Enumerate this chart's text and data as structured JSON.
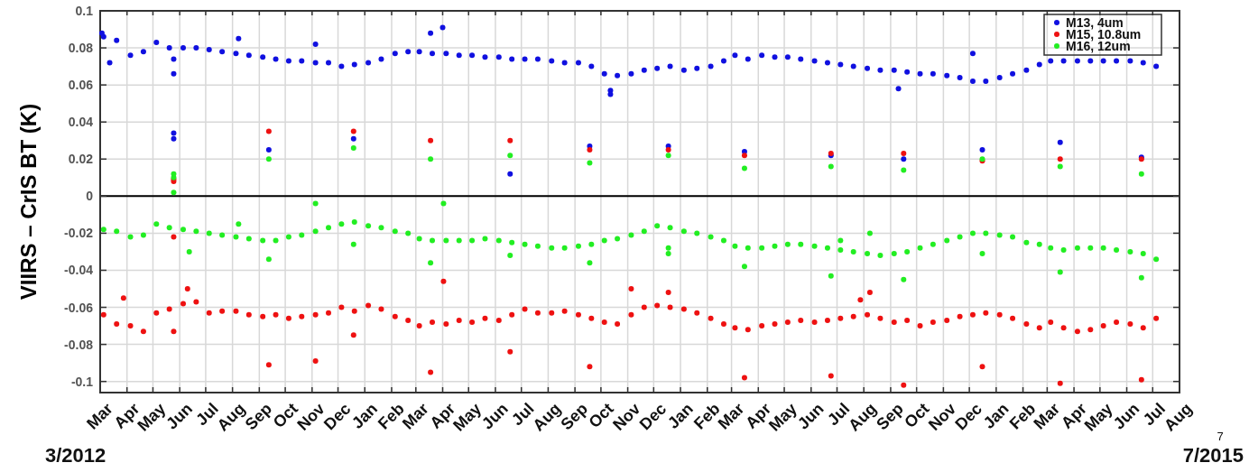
{
  "chart_data": {
    "type": "scatter",
    "ylabel": "VIIRS – CrIS BT (K)",
    "annotations": [
      "3/2012",
      "7/2015",
      "7"
    ],
    "xlim": [
      "2012-03-01",
      "2015-08-01"
    ],
    "ylim": [
      -0.106,
      0.1
    ],
    "yticks": [
      -0.1,
      -0.08,
      -0.06,
      -0.04,
      -0.02,
      0,
      0.02,
      0.04,
      0.06,
      0.08,
      0.1
    ],
    "xticks": [
      {
        "value": "2012-03-01",
        "label": "Mar"
      },
      {
        "value": "2012-04-01",
        "label": "Apr"
      },
      {
        "value": "2012-05-01",
        "label": "May"
      },
      {
        "value": "2012-06-01",
        "label": "Jun"
      },
      {
        "value": "2012-07-01",
        "label": "Jul"
      },
      {
        "value": "2012-08-01",
        "label": "Aug"
      },
      {
        "value": "2012-09-01",
        "label": "Sep"
      },
      {
        "value": "2012-10-01",
        "label": "Oct"
      },
      {
        "value": "2012-11-01",
        "label": "Nov"
      },
      {
        "value": "2012-12-01",
        "label": "Dec"
      },
      {
        "value": "2013-01-01",
        "label": "Jan"
      },
      {
        "value": "2013-02-01",
        "label": "Feb"
      },
      {
        "value": "2013-03-01",
        "label": "Mar"
      },
      {
        "value": "2013-04-01",
        "label": "Apr"
      },
      {
        "value": "2013-05-01",
        "label": "May"
      },
      {
        "value": "2013-06-01",
        "label": "Jun"
      },
      {
        "value": "2013-07-01",
        "label": "Jul"
      },
      {
        "value": "2013-08-01",
        "label": "Aug"
      },
      {
        "value": "2013-09-01",
        "label": "Sep"
      },
      {
        "value": "2013-10-01",
        "label": "Oct"
      },
      {
        "value": "2013-11-01",
        "label": "Nov"
      },
      {
        "value": "2013-12-01",
        "label": "Dec"
      },
      {
        "value": "2014-01-01",
        "label": "Jan"
      },
      {
        "value": "2014-02-01",
        "label": "Feb"
      },
      {
        "value": "2014-03-01",
        "label": "Mar"
      },
      {
        "value": "2014-04-01",
        "label": "Apr"
      },
      {
        "value": "2014-05-01",
        "label": "May"
      },
      {
        "value": "2014-06-01",
        "label": "Jun"
      },
      {
        "value": "2014-07-01",
        "label": "Jul"
      },
      {
        "value": "2014-08-01",
        "label": "Aug"
      },
      {
        "value": "2014-09-01",
        "label": "Sep"
      },
      {
        "value": "2014-10-01",
        "label": "Oct"
      },
      {
        "value": "2014-11-01",
        "label": "Nov"
      },
      {
        "value": "2014-12-01",
        "label": "Dec"
      },
      {
        "value": "2015-01-01",
        "label": "Jan"
      },
      {
        "value": "2015-02-01",
        "label": "Feb"
      },
      {
        "value": "2015-03-01",
        "label": "Mar"
      },
      {
        "value": "2015-04-01",
        "label": "Apr"
      },
      {
        "value": "2015-05-01",
        "label": "May"
      },
      {
        "value": "2015-06-01",
        "label": "Jun"
      },
      {
        "value": "2015-07-01",
        "label": "Jul"
      },
      {
        "value": "2015-08-01",
        "label": "Aug"
      }
    ],
    "grid": true,
    "legend": "top right",
    "marker": "circle",
    "ref_lines": [
      {
        "axis": "y",
        "value": 0,
        "color": "#000000"
      }
    ],
    "series": [
      {
        "name": "M13, 4um",
        "color": "#1010e0",
        "x": [
          "2012-03-05",
          "2012-03-20",
          "2012-04-05",
          "2012-04-20",
          "2012-05-05",
          "2012-05-20",
          "2012-06-05",
          "2012-06-20",
          "2012-07-05",
          "2012-07-20",
          "2012-08-05",
          "2012-08-20",
          "2012-09-05",
          "2012-09-20",
          "2012-10-05",
          "2012-10-20",
          "2012-11-05",
          "2012-11-20",
          "2012-12-05",
          "2012-12-20",
          "2013-01-05",
          "2013-01-20",
          "2013-02-05",
          "2013-02-20",
          "2013-03-05",
          "2013-03-20",
          "2013-04-05",
          "2013-04-20",
          "2013-05-05",
          "2013-05-20",
          "2013-06-05",
          "2013-06-20",
          "2013-07-05",
          "2013-07-20",
          "2013-08-05",
          "2013-08-20",
          "2013-09-05",
          "2013-09-20",
          "2013-10-05",
          "2013-10-20",
          "2013-11-05",
          "2013-11-20",
          "2013-12-05",
          "2013-12-20",
          "2014-01-05",
          "2014-01-20",
          "2014-02-05",
          "2014-02-20",
          "2014-03-05",
          "2014-03-20",
          "2014-04-05",
          "2014-04-20",
          "2014-05-05",
          "2014-05-20",
          "2014-06-05",
          "2014-06-20",
          "2014-07-05",
          "2014-07-20",
          "2014-08-05",
          "2014-08-20",
          "2014-09-05",
          "2014-09-20",
          "2014-10-05",
          "2014-10-20",
          "2014-11-05",
          "2014-11-20",
          "2014-12-05",
          "2014-12-20",
          "2015-01-05",
          "2015-01-20",
          "2015-02-05",
          "2015-02-20",
          "2015-03-05",
          "2015-03-20",
          "2015-04-05",
          "2015-04-20",
          "2015-05-05",
          "2015-05-20",
          "2015-06-05",
          "2015-06-20",
          "2015-07-05",
          "2012-03-03",
          "2012-03-12",
          "2012-05-25",
          "2012-05-25",
          "2012-05-25",
          "2012-05-25",
          "2012-08-08",
          "2012-09-12",
          "2012-11-05",
          "2012-12-19",
          "2013-03-18",
          "2013-04-01",
          "2013-06-18",
          "2013-09-18",
          "2013-10-12",
          "2013-10-12",
          "2013-12-18",
          "2014-03-16",
          "2014-06-24",
          "2014-09-16",
          "2014-09-10",
          "2014-12-16",
          "2014-12-05",
          "2015-03-16",
          "2015-06-18"
        ],
        "values": [
          0.086,
          0.084,
          0.076,
          0.078,
          0.083,
          0.08,
          0.08,
          0.08,
          0.079,
          0.078,
          0.077,
          0.076,
          0.075,
          0.074,
          0.073,
          0.073,
          0.072,
          0.072,
          0.07,
          0.071,
          0.072,
          0.074,
          0.077,
          0.078,
          0.078,
          0.077,
          0.077,
          0.076,
          0.076,
          0.075,
          0.075,
          0.074,
          0.074,
          0.074,
          0.073,
          0.072,
          0.072,
          0.07,
          0.066,
          0.065,
          0.066,
          0.068,
          0.069,
          0.07,
          0.068,
          0.069,
          0.07,
          0.073,
          0.076,
          0.074,
          0.076,
          0.075,
          0.075,
          0.074,
          0.073,
          0.072,
          0.071,
          0.07,
          0.069,
          0.068,
          0.068,
          0.067,
          0.066,
          0.066,
          0.065,
          0.064,
          0.062,
          0.062,
          0.064,
          0.066,
          0.068,
          0.071,
          0.073,
          0.073,
          0.073,
          0.073,
          0.073,
          0.073,
          0.073,
          0.072,
          0.07,
          0.088,
          0.072,
          0.034,
          0.031,
          0.066,
          0.074,
          0.085,
          0.025,
          0.082,
          0.031,
          0.088,
          0.091,
          0.012,
          0.027,
          0.057,
          0.055,
          0.027,
          0.024,
          0.022,
          0.02,
          0.058,
          0.025,
          0.077,
          0.029,
          0.021
        ]
      },
      {
        "name": "M15, 10.8um",
        "color": "#ee1111",
        "x": [
          "2012-03-05",
          "2012-03-20",
          "2012-04-05",
          "2012-04-20",
          "2012-05-05",
          "2012-05-20",
          "2012-06-05",
          "2012-06-20",
          "2012-07-05",
          "2012-07-20",
          "2012-08-05",
          "2012-08-20",
          "2012-09-05",
          "2012-09-20",
          "2012-10-05",
          "2012-10-20",
          "2012-11-05",
          "2012-11-20",
          "2012-12-05",
          "2012-12-20",
          "2013-01-05",
          "2013-01-20",
          "2013-02-05",
          "2013-02-20",
          "2013-03-05",
          "2013-03-20",
          "2013-04-05",
          "2013-04-20",
          "2013-05-05",
          "2013-05-20",
          "2013-06-05",
          "2013-06-20",
          "2013-07-05",
          "2013-07-20",
          "2013-08-05",
          "2013-08-20",
          "2013-09-05",
          "2013-09-20",
          "2013-10-05",
          "2013-10-20",
          "2013-11-05",
          "2013-11-20",
          "2013-12-05",
          "2013-12-20",
          "2014-01-05",
          "2014-01-20",
          "2014-02-05",
          "2014-02-20",
          "2014-03-05",
          "2014-03-20",
          "2014-04-05",
          "2014-04-20",
          "2014-05-05",
          "2014-05-20",
          "2014-06-05",
          "2014-06-20",
          "2014-07-05",
          "2014-07-20",
          "2014-08-05",
          "2014-08-20",
          "2014-09-05",
          "2014-09-20",
          "2014-10-05",
          "2014-10-20",
          "2014-11-05",
          "2014-11-20",
          "2014-12-05",
          "2014-12-20",
          "2015-01-05",
          "2015-01-20",
          "2015-02-05",
          "2015-02-20",
          "2015-03-05",
          "2015-03-20",
          "2015-04-05",
          "2015-04-20",
          "2015-05-05",
          "2015-05-20",
          "2015-06-05",
          "2015-06-20",
          "2015-07-05",
          "2012-03-28",
          "2012-05-25",
          "2012-05-25",
          "2012-05-25",
          "2012-05-25",
          "2012-06-10",
          "2012-09-12",
          "2012-09-12",
          "2012-11-05",
          "2012-12-19",
          "2012-12-19",
          "2013-03-18",
          "2013-03-18",
          "2013-04-02",
          "2013-06-18",
          "2013-06-18",
          "2013-09-18",
          "2013-09-18",
          "2013-11-05",
          "2013-12-18",
          "2013-12-18",
          "2014-03-16",
          "2014-03-16",
          "2014-06-24",
          "2014-06-24",
          "2014-07-28",
          "2014-08-08",
          "2014-09-16",
          "2014-09-16",
          "2014-12-16",
          "2014-12-16",
          "2015-03-16",
          "2015-03-16",
          "2015-06-18",
          "2015-06-18"
        ],
        "values": [
          -0.064,
          -0.069,
          -0.07,
          -0.073,
          -0.063,
          -0.061,
          -0.058,
          -0.057,
          -0.063,
          -0.062,
          -0.062,
          -0.064,
          -0.065,
          -0.064,
          -0.066,
          -0.065,
          -0.064,
          -0.063,
          -0.06,
          -0.062,
          -0.059,
          -0.061,
          -0.065,
          -0.067,
          -0.07,
          -0.068,
          -0.069,
          -0.067,
          -0.068,
          -0.066,
          -0.067,
          -0.064,
          -0.061,
          -0.063,
          -0.063,
          -0.062,
          -0.064,
          -0.066,
          -0.068,
          -0.069,
          -0.064,
          -0.06,
          -0.059,
          -0.06,
          -0.061,
          -0.063,
          -0.066,
          -0.069,
          -0.071,
          -0.072,
          -0.07,
          -0.069,
          -0.068,
          -0.067,
          -0.068,
          -0.067,
          -0.066,
          -0.065,
          -0.064,
          -0.066,
          -0.068,
          -0.067,
          -0.07,
          -0.068,
          -0.067,
          -0.065,
          -0.064,
          -0.063,
          -0.064,
          -0.066,
          -0.069,
          -0.071,
          -0.068,
          -0.071,
          -0.073,
          -0.072,
          -0.07,
          -0.068,
          -0.069,
          -0.071,
          -0.066,
          -0.055,
          0.008,
          0.009,
          -0.022,
          -0.073,
          -0.05,
          0.035,
          -0.091,
          -0.089,
          0.035,
          -0.075,
          0.03,
          -0.095,
          -0.046,
          0.03,
          -0.084,
          0.025,
          -0.092,
          -0.05,
          0.025,
          -0.052,
          0.022,
          -0.098,
          0.023,
          -0.097,
          -0.056,
          -0.052,
          0.023,
          -0.102,
          0.019,
          -0.092,
          0.02,
          -0.101,
          0.02,
          -0.099
        ]
      },
      {
        "name": "M16, 12um",
        "color": "#22ee22",
        "x": [
          "2012-03-05",
          "2012-03-20",
          "2012-04-05",
          "2012-04-20",
          "2012-05-05",
          "2012-05-20",
          "2012-06-05",
          "2012-06-20",
          "2012-07-05",
          "2012-07-20",
          "2012-08-05",
          "2012-08-20",
          "2012-09-05",
          "2012-09-20",
          "2012-10-05",
          "2012-10-20",
          "2012-11-05",
          "2012-11-20",
          "2012-12-05",
          "2012-12-20",
          "2013-01-05",
          "2013-01-20",
          "2013-02-05",
          "2013-02-20",
          "2013-03-05",
          "2013-03-20",
          "2013-04-05",
          "2013-04-20",
          "2013-05-05",
          "2013-05-20",
          "2013-06-05",
          "2013-06-20",
          "2013-07-05",
          "2013-07-20",
          "2013-08-05",
          "2013-08-20",
          "2013-09-05",
          "2013-09-20",
          "2013-10-05",
          "2013-10-20",
          "2013-11-05",
          "2013-11-20",
          "2013-12-05",
          "2013-12-20",
          "2014-01-05",
          "2014-01-20",
          "2014-02-05",
          "2014-02-20",
          "2014-03-05",
          "2014-03-20",
          "2014-04-05",
          "2014-04-20",
          "2014-05-05",
          "2014-05-20",
          "2014-06-05",
          "2014-06-20",
          "2014-07-05",
          "2014-07-20",
          "2014-08-05",
          "2014-08-20",
          "2014-09-05",
          "2014-09-20",
          "2014-10-05",
          "2014-10-20",
          "2014-11-05",
          "2014-11-20",
          "2014-12-05",
          "2014-12-20",
          "2015-01-05",
          "2015-01-20",
          "2015-02-05",
          "2015-02-20",
          "2015-03-05",
          "2015-03-20",
          "2015-04-05",
          "2015-04-20",
          "2015-05-05",
          "2015-05-20",
          "2015-06-05",
          "2015-06-20",
          "2015-07-05",
          "2012-05-25",
          "2012-05-25",
          "2012-05-25",
          "2012-06-12",
          "2012-08-08",
          "2012-09-12",
          "2012-09-12",
          "2012-11-05",
          "2012-12-19",
          "2012-12-19",
          "2013-03-18",
          "2013-03-18",
          "2013-04-02",
          "2013-06-18",
          "2013-06-18",
          "2013-09-18",
          "2013-09-18",
          "2013-12-18",
          "2013-12-18",
          "2013-12-18",
          "2014-03-16",
          "2014-03-16",
          "2014-06-24",
          "2014-06-24",
          "2014-07-05",
          "2014-08-08",
          "2014-09-16",
          "2014-09-16",
          "2014-12-16",
          "2014-12-16",
          "2015-03-16",
          "2015-03-16",
          "2015-06-18",
          "2015-06-18"
        ],
        "values": [
          -0.018,
          -0.019,
          -0.022,
          -0.021,
          -0.015,
          -0.017,
          -0.018,
          -0.019,
          -0.02,
          -0.021,
          -0.022,
          -0.023,
          -0.024,
          -0.024,
          -0.022,
          -0.021,
          -0.019,
          -0.017,
          -0.015,
          -0.014,
          -0.016,
          -0.017,
          -0.019,
          -0.02,
          -0.023,
          -0.024,
          -0.024,
          -0.024,
          -0.024,
          -0.023,
          -0.024,
          -0.025,
          -0.026,
          -0.027,
          -0.028,
          -0.028,
          -0.027,
          -0.026,
          -0.024,
          -0.023,
          -0.021,
          -0.019,
          -0.016,
          -0.017,
          -0.019,
          -0.02,
          -0.022,
          -0.024,
          -0.027,
          -0.028,
          -0.028,
          -0.027,
          -0.026,
          -0.026,
          -0.027,
          -0.028,
          -0.029,
          -0.03,
          -0.031,
          -0.032,
          -0.031,
          -0.03,
          -0.028,
          -0.026,
          -0.024,
          -0.022,
          -0.02,
          -0.02,
          -0.021,
          -0.022,
          -0.025,
          -0.026,
          -0.028,
          -0.029,
          -0.028,
          -0.028,
          -0.028,
          -0.029,
          -0.03,
          -0.031,
          -0.034,
          0.012,
          0.01,
          0.002,
          -0.03,
          -0.015,
          0.02,
          -0.034,
          -0.004,
          0.026,
          -0.026,
          0.02,
          -0.036,
          -0.004,
          0.022,
          -0.032,
          0.018,
          -0.036,
          0.022,
          -0.028,
          -0.031,
          0.015,
          -0.038,
          0.016,
          -0.043,
          -0.024,
          -0.02,
          0.014,
          -0.045,
          0.02,
          -0.031,
          0.016,
          -0.041,
          0.012,
          -0.044
        ]
      }
    ]
  }
}
